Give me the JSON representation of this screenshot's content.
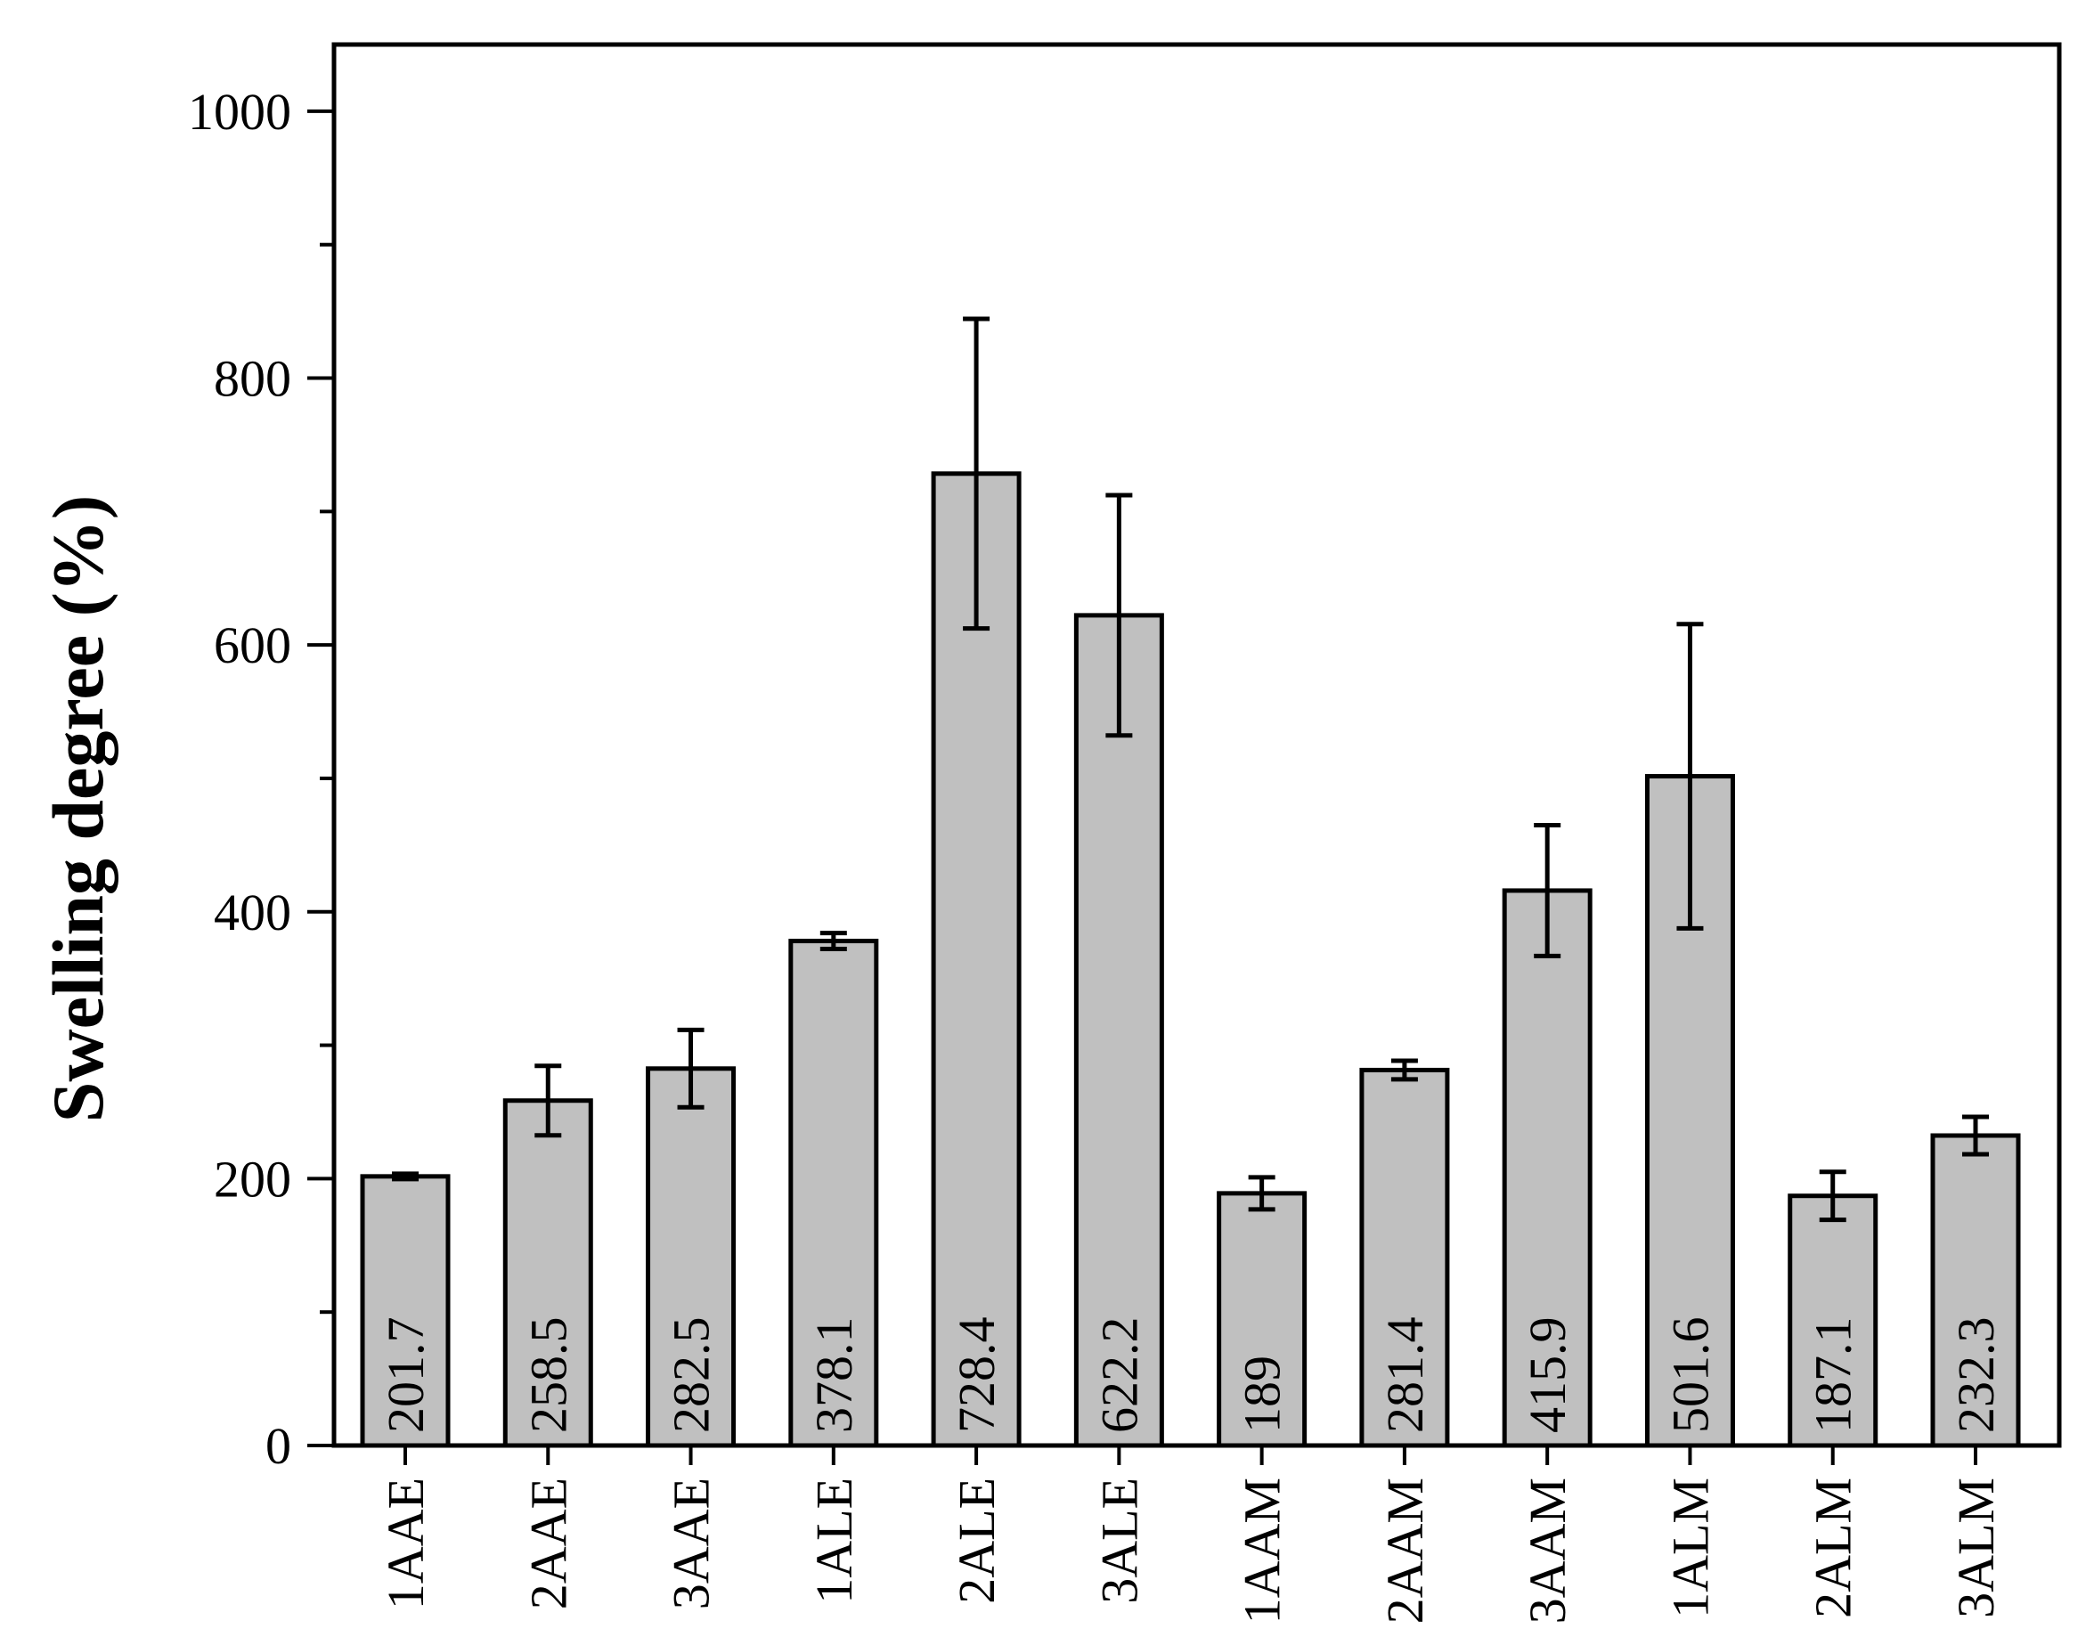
{
  "chart_data": {
    "type": "bar",
    "title": "",
    "xlabel": "",
    "ylabel": "Swelling degree (%)",
    "ylim": [
      0,
      1050
    ],
    "yticks": [
      0,
      200,
      400,
      600,
      800,
      1000
    ],
    "categories": [
      "1AAE",
      "2AAE",
      "3AAE",
      "1ALE",
      "2ALE",
      "3ALE",
      "1AAM",
      "2AAM",
      "3AAM",
      "1ALM",
      "2ALM",
      "3ALM"
    ],
    "values": [
      201.7,
      258.5,
      282.5,
      378.1,
      728.4,
      622.2,
      189,
      281.4,
      415.9,
      501.6,
      187.1,
      232.3
    ],
    "value_labels": [
      "201.7",
      "258.5",
      "282.5",
      "378.1",
      "728.4",
      "622.2",
      "189",
      "281.4",
      "415.9",
      "501.6",
      "187.1",
      "232.3"
    ],
    "errors": [
      2,
      26,
      29,
      6,
      116,
      90,
      12,
      7,
      49,
      114,
      18,
      14
    ],
    "grid": false,
    "bar_color": "#c0c0c0",
    "edge_color": "#000000"
  }
}
